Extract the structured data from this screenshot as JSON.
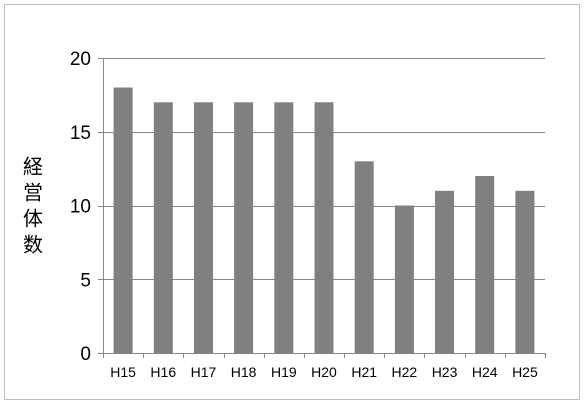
{
  "chart_data": {
    "type": "bar",
    "ylabel": "経営体数",
    "xlabel": "",
    "categories": [
      "H15",
      "H16",
      "H17",
      "H18",
      "H19",
      "H20",
      "H21",
      "H22",
      "H23",
      "H24",
      "H25"
    ],
    "values": [
      18,
      17,
      17,
      17,
      17,
      17,
      13,
      10,
      11,
      12,
      11
    ],
    "ylim": [
      0,
      20
    ],
    "yticks": [
      0,
      5,
      10,
      15,
      20
    ],
    "grid": true,
    "legend": "none",
    "bar_color": "#808080",
    "grid_color": "#868686"
  }
}
